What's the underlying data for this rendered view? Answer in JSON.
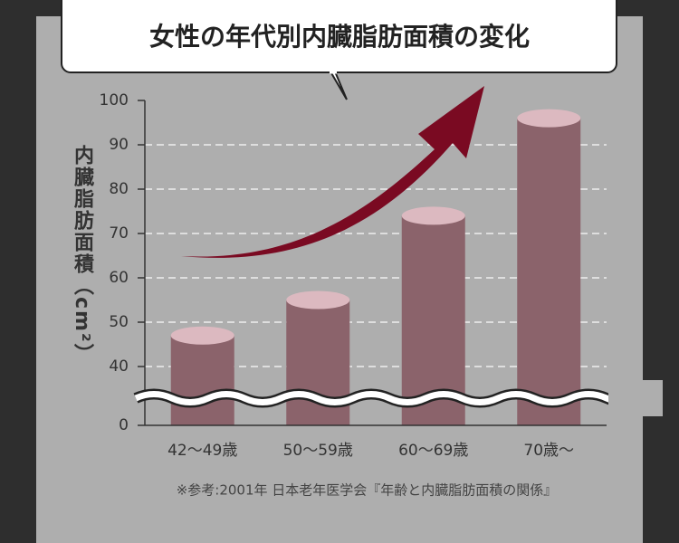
{
  "chart_data": {
    "type": "bar",
    "title": "女性の年代別内臓脂肪面積の変化",
    "y_label": "内臓脂肪面積（cm²）",
    "categories": [
      "42～49歳",
      "50～59歳",
      "60～69歳",
      "70歳～"
    ],
    "values": [
      47,
      55,
      74,
      96
    ],
    "color": "#8b636b",
    "top_color": "#dcb9c0",
    "ylim": [
      0,
      100
    ],
    "yticks": [
      0,
      40,
      50,
      60,
      70,
      80,
      90,
      100
    ],
    "axis_break": true,
    "grid": true,
    "note": "※参考:2001年 日本老年医学会『年齢と内臓脂肪面積の関係』"
  }
}
